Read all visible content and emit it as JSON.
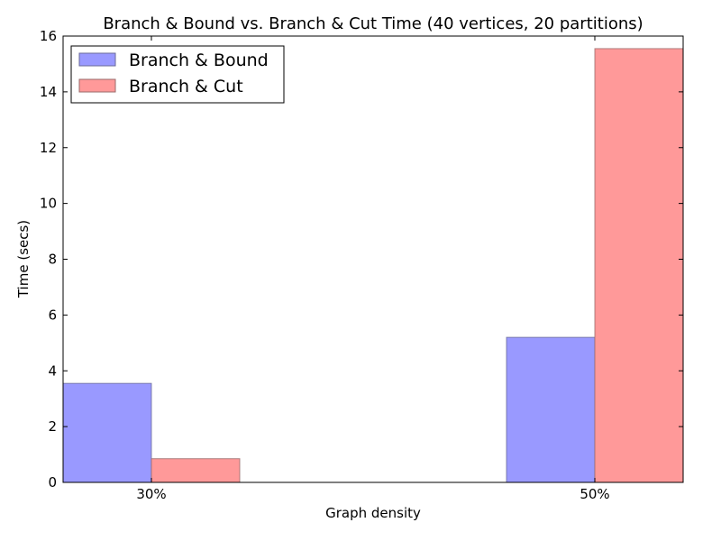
{
  "chart_data": {
    "type": "bar",
    "title": "Branch & Bound vs. Branch & Cut Time (40 vertices, 20 partitions)",
    "xlabel": "Graph density",
    "ylabel": "Time (secs)",
    "categories": [
      "30%",
      "50%"
    ],
    "series": [
      {
        "name": "Branch & Bound",
        "color": "#9999ff",
        "values": [
          3.55,
          5.2
        ]
      },
      {
        "name": "Branch & Cut",
        "color": "#ff9999",
        "values": [
          0.85,
          15.55
        ]
      }
    ],
    "ylim": [
      0,
      16
    ],
    "yticks": [
      0,
      2,
      4,
      6,
      8,
      10,
      12,
      14,
      16
    ],
    "grid": false,
    "legend": "top-left"
  }
}
